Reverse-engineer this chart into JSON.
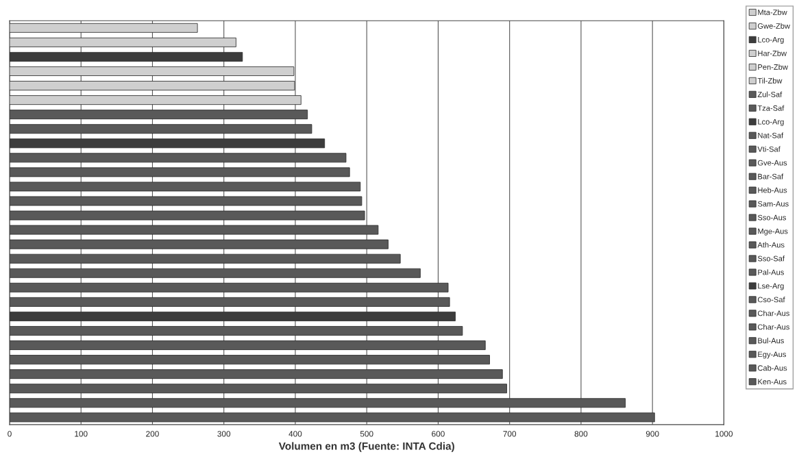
{
  "chart_data": {
    "type": "bar",
    "orientation": "horizontal",
    "xlabel": "Volumen en m3 (Fuente: INTA Cdia)",
    "categories": [
      null,
      null,
      null,
      null,
      null,
      null,
      null,
      null,
      null,
      null,
      null,
      null,
      null,
      null,
      null,
      null,
      null,
      null,
      null,
      null,
      null,
      null,
      null,
      null,
      null,
      null,
      null,
      null
    ],
    "xlim": [
      0,
      1000
    ],
    "xticks": [
      0,
      100,
      200,
      300,
      400,
      500,
      600,
      700,
      800,
      900,
      1000
    ],
    "grid": "x",
    "legend": "right",
    "series": [
      {
        "name": "Mta-Zbw",
        "color": "#cfcfcf",
        "values": [
          263,
          null,
          null,
          null,
          null,
          null,
          null,
          null,
          null,
          null,
          null,
          null,
          null,
          null,
          null,
          null,
          null,
          null,
          null,
          null,
          null,
          null,
          null,
          null,
          null,
          null,
          null,
          null
        ]
      },
      {
        "name": "Gwe-Zbw",
        "color": "#cfcfcf",
        "values": [
          null,
          317,
          null,
          null,
          null,
          null,
          null,
          null,
          null,
          null,
          null,
          null,
          null,
          null,
          null,
          null,
          null,
          null,
          null,
          null,
          null,
          null,
          null,
          null,
          null,
          null,
          null,
          null
        ]
      },
      {
        "name": "Lco-Arg",
        "color": "#3c3c3c",
        "values": [
          null,
          null,
          326,
          null,
          null,
          null,
          null,
          null,
          null,
          null,
          null,
          null,
          null,
          null,
          null,
          null,
          null,
          null,
          null,
          null,
          null,
          null,
          null,
          null,
          null,
          null,
          null,
          null
        ]
      },
      {
        "name": "Har-Zbw",
        "color": "#cfcfcf",
        "values": [
          null,
          null,
          null,
          398,
          null,
          null,
          null,
          null,
          null,
          null,
          null,
          null,
          null,
          null,
          null,
          null,
          null,
          null,
          null,
          null,
          null,
          null,
          null,
          null,
          null,
          null,
          null,
          null
        ]
      },
      {
        "name": "Pen-Zbw",
        "color": "#cfcfcf",
        "values": [
          null,
          null,
          null,
          null,
          399,
          null,
          null,
          null,
          null,
          null,
          null,
          null,
          null,
          null,
          null,
          null,
          null,
          null,
          null,
          null,
          null,
          null,
          null,
          null,
          null,
          null,
          null,
          null
        ]
      },
      {
        "name": "Til-Zbw",
        "color": "#cfcfcf",
        "values": [
          null,
          null,
          null,
          null,
          null,
          408,
          null,
          null,
          null,
          null,
          null,
          null,
          null,
          null,
          null,
          null,
          null,
          null,
          null,
          null,
          null,
          null,
          null,
          null,
          null,
          null,
          null,
          null
        ]
      },
      {
        "name": "Zul-Saf",
        "color": "#595959",
        "values": [
          null,
          null,
          null,
          null,
          null,
          null,
          417,
          null,
          null,
          null,
          null,
          null,
          null,
          null,
          null,
          null,
          null,
          null,
          null,
          null,
          null,
          null,
          null,
          null,
          null,
          null,
          null,
          null
        ]
      },
      {
        "name": "Tza-Saf",
        "color": "#595959",
        "values": [
          null,
          null,
          null,
          null,
          null,
          null,
          null,
          423,
          null,
          null,
          null,
          null,
          null,
          null,
          null,
          null,
          null,
          null,
          null,
          null,
          null,
          null,
          null,
          null,
          null,
          null,
          null,
          null
        ]
      },
      {
        "name": "Lco-Arg",
        "color": "#3c3c3c",
        "values": [
          null,
          null,
          null,
          null,
          null,
          null,
          null,
          null,
          441,
          null,
          null,
          null,
          null,
          null,
          null,
          null,
          null,
          null,
          null,
          null,
          null,
          null,
          null,
          null,
          null,
          null,
          null,
          null
        ]
      },
      {
        "name": "Nat-Saf",
        "color": "#595959",
        "values": [
          null,
          null,
          null,
          null,
          null,
          null,
          null,
          null,
          null,
          471,
          null,
          null,
          null,
          null,
          null,
          null,
          null,
          null,
          null,
          null,
          null,
          null,
          null,
          null,
          null,
          null,
          null,
          null
        ]
      },
      {
        "name": "Vti-Saf",
        "color": "#595959",
        "values": [
          null,
          null,
          null,
          null,
          null,
          null,
          null,
          null,
          null,
          null,
          476,
          null,
          null,
          null,
          null,
          null,
          null,
          null,
          null,
          null,
          null,
          null,
          null,
          null,
          null,
          null,
          null,
          null
        ]
      },
      {
        "name": "Gve-Aus",
        "color": "#595959",
        "values": [
          null,
          null,
          null,
          null,
          null,
          null,
          null,
          null,
          null,
          null,
          null,
          491,
          null,
          null,
          null,
          null,
          null,
          null,
          null,
          null,
          null,
          null,
          null,
          null,
          null,
          null,
          null,
          null
        ]
      },
      {
        "name": "Bar-Saf",
        "color": "#595959",
        "values": [
          null,
          null,
          null,
          null,
          null,
          null,
          null,
          null,
          null,
          null,
          null,
          null,
          493,
          null,
          null,
          null,
          null,
          null,
          null,
          null,
          null,
          null,
          null,
          null,
          null,
          null,
          null,
          null
        ]
      },
      {
        "name": "Heb-Aus",
        "color": "#595959",
        "values": [
          null,
          null,
          null,
          null,
          null,
          null,
          null,
          null,
          null,
          null,
          null,
          null,
          null,
          497,
          null,
          null,
          null,
          null,
          null,
          null,
          null,
          null,
          null,
          null,
          null,
          null,
          null,
          null
        ]
      },
      {
        "name": "Sam-Aus",
        "color": "#595959",
        "values": [
          null,
          null,
          null,
          null,
          null,
          null,
          null,
          null,
          null,
          null,
          null,
          null,
          null,
          null,
          516,
          null,
          null,
          null,
          null,
          null,
          null,
          null,
          null,
          null,
          null,
          null,
          null,
          null
        ]
      },
      {
        "name": "Sso-Aus",
        "color": "#595959",
        "values": [
          null,
          null,
          null,
          null,
          null,
          null,
          null,
          null,
          null,
          null,
          null,
          null,
          null,
          null,
          null,
          530,
          null,
          null,
          null,
          null,
          null,
          null,
          null,
          null,
          null,
          null,
          null,
          null
        ]
      },
      {
        "name": "Mge-Aus",
        "color": "#595959",
        "values": [
          null,
          null,
          null,
          null,
          null,
          null,
          null,
          null,
          null,
          null,
          null,
          null,
          null,
          null,
          null,
          null,
          547,
          null,
          null,
          null,
          null,
          null,
          null,
          null,
          null,
          null,
          null,
          null
        ]
      },
      {
        "name": "Ath-Aus",
        "color": "#595959",
        "values": [
          null,
          null,
          null,
          null,
          null,
          null,
          null,
          null,
          null,
          null,
          null,
          null,
          null,
          null,
          null,
          null,
          null,
          575,
          null,
          null,
          null,
          null,
          null,
          null,
          null,
          null,
          null,
          null
        ]
      },
      {
        "name": "Sso-Saf",
        "color": "#595959",
        "values": [
          null,
          null,
          null,
          null,
          null,
          null,
          null,
          null,
          null,
          null,
          null,
          null,
          null,
          null,
          null,
          null,
          null,
          null,
          614,
          null,
          null,
          null,
          null,
          null,
          null,
          null,
          null,
          null
        ]
      },
      {
        "name": "Pal-Aus",
        "color": "#595959",
        "values": [
          null,
          null,
          null,
          null,
          null,
          null,
          null,
          null,
          null,
          null,
          null,
          null,
          null,
          null,
          null,
          null,
          null,
          null,
          null,
          616,
          null,
          null,
          null,
          null,
          null,
          null,
          null,
          null
        ]
      },
      {
        "name": "Lse-Arg",
        "color": "#3c3c3c",
        "values": [
          null,
          null,
          null,
          null,
          null,
          null,
          null,
          null,
          null,
          null,
          null,
          null,
          null,
          null,
          null,
          null,
          null,
          null,
          null,
          null,
          624,
          null,
          null,
          null,
          null,
          null,
          null,
          null
        ]
      },
      {
        "name": "Cso-Saf",
        "color": "#595959",
        "values": [
          null,
          null,
          null,
          null,
          null,
          null,
          null,
          null,
          null,
          null,
          null,
          null,
          null,
          null,
          null,
          null,
          null,
          null,
          null,
          null,
          null,
          634,
          null,
          null,
          null,
          null,
          null,
          null
        ]
      },
      {
        "name": "Char-Aus",
        "color": "#595959",
        "values": [
          null,
          null,
          null,
          null,
          null,
          null,
          null,
          null,
          null,
          null,
          null,
          null,
          null,
          null,
          null,
          null,
          null,
          null,
          null,
          null,
          null,
          null,
          666,
          null,
          null,
          null,
          null,
          null
        ]
      },
      {
        "name": "Char-Aus",
        "color": "#595959",
        "values": [
          null,
          null,
          null,
          null,
          null,
          null,
          null,
          null,
          null,
          null,
          null,
          null,
          null,
          null,
          null,
          null,
          null,
          null,
          null,
          null,
          null,
          null,
          null,
          672,
          null,
          null,
          null,
          null
        ]
      },
      {
        "name": "Bul-Aus",
        "color": "#595959",
        "values": [
          null,
          null,
          null,
          null,
          null,
          null,
          null,
          null,
          null,
          null,
          null,
          null,
          null,
          null,
          null,
          null,
          null,
          null,
          null,
          null,
          null,
          null,
          null,
          null,
          690,
          null,
          null,
          null
        ]
      },
      {
        "name": "Egy-Aus",
        "color": "#595959",
        "values": [
          null,
          null,
          null,
          null,
          null,
          null,
          null,
          null,
          null,
          null,
          null,
          null,
          null,
          null,
          null,
          null,
          null,
          null,
          null,
          null,
          null,
          null,
          null,
          null,
          null,
          696,
          null,
          null
        ]
      },
      {
        "name": "Cab-Aus",
        "color": "#595959",
        "values": [
          null,
          null,
          null,
          null,
          null,
          null,
          null,
          null,
          null,
          null,
          null,
          null,
          null,
          null,
          null,
          null,
          null,
          null,
          null,
          null,
          null,
          null,
          null,
          null,
          null,
          null,
          862,
          null
        ]
      },
      {
        "name": "Ken-Aus",
        "color": "#595959",
        "values": [
          null,
          null,
          null,
          null,
          null,
          null,
          null,
          null,
          null,
          null,
          null,
          null,
          null,
          null,
          null,
          null,
          null,
          null,
          null,
          null,
          null,
          null,
          null,
          null,
          null,
          null,
          null,
          903
        ]
      }
    ]
  }
}
